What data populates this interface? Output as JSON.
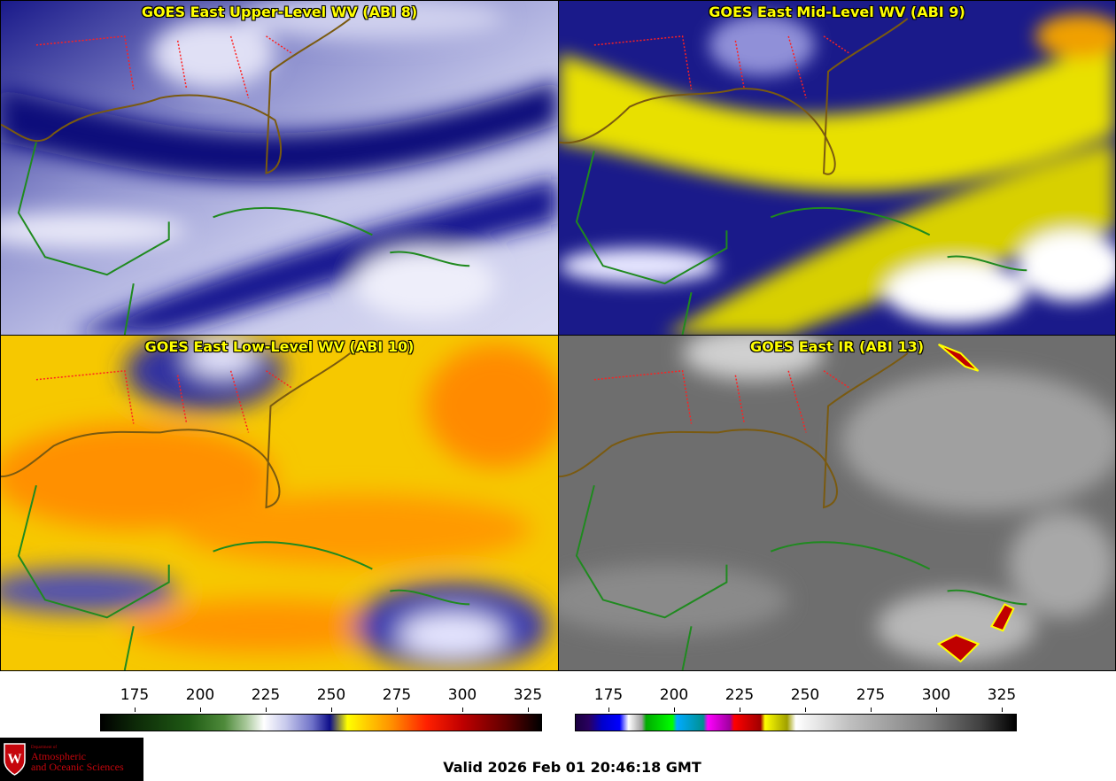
{
  "panels": [
    {
      "title": "GOES East Upper-Level WV (ABI 8)",
      "colormap": "wv-blue"
    },
    {
      "title": "GOES East Mid-Level WV (ABI 9)",
      "colormap": "wv-yellow"
    },
    {
      "title": "GOES East Low-Level WV (ABI 10)",
      "colormap": "wv-orange"
    },
    {
      "title": "GOES East IR (ABI 13)",
      "colormap": "ir-gray"
    }
  ],
  "colorbar_wv": {
    "ticks": [
      "175",
      "200",
      "225",
      "250",
      "275",
      "300",
      "325"
    ]
  },
  "colorbar_ir": {
    "ticks": [
      "175",
      "200",
      "225",
      "250",
      "275",
      "300",
      "325"
    ]
  },
  "logo": {
    "line1": "Department of",
    "line2": "Atmospheric",
    "line3": "and Oceanic Sciences",
    "crest_letter": "W"
  },
  "valid_time": "Valid 2026 Feb 01 20:46:18 GMT",
  "colors": {
    "coast": "#1f8a1f",
    "state_borders": "#ff2020",
    "title": "#ffff00"
  }
}
